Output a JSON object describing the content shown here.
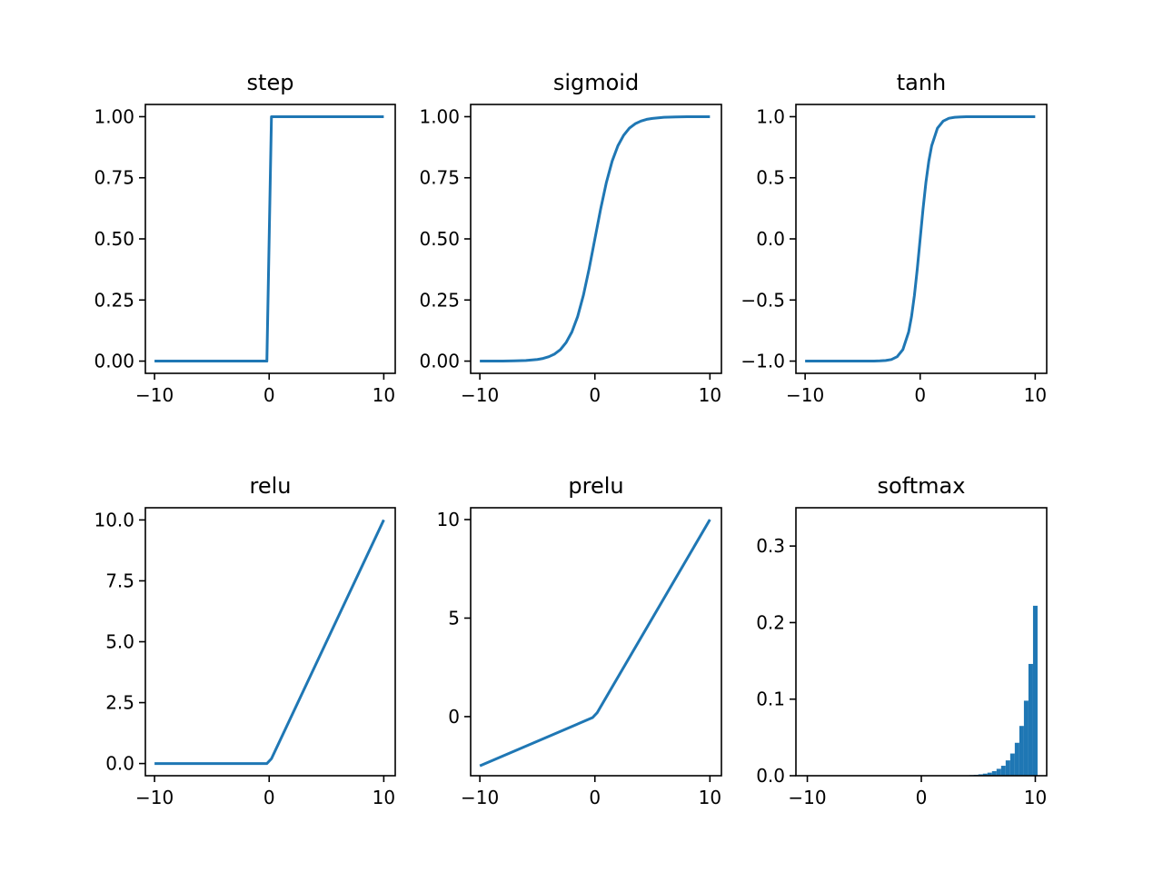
{
  "figure": {
    "line_color": "#1f77b4",
    "background": "#ffffff"
  },
  "chart_data": [
    {
      "type": "line",
      "title": "step",
      "xlabel": "",
      "ylabel": "",
      "xlim": [
        -10.8,
        11.0
      ],
      "ylim": [
        -0.05,
        1.05
      ],
      "xticks": [
        -10,
        0,
        10
      ],
      "xtick_labels": [
        "−10",
        "0",
        "10"
      ],
      "yticks": [
        0,
        0.25,
        0.5,
        0.75,
        1.0
      ],
      "ytick_labels": [
        "0.00",
        "0.25",
        "0.50",
        "0.75",
        "1.00"
      ],
      "series": [
        {
          "x": [
            -10,
            -0.2,
            0.2,
            10
          ],
          "y": [
            0,
            0,
            1,
            1
          ]
        }
      ]
    },
    {
      "type": "line",
      "title": "sigmoid",
      "xlabel": "",
      "ylabel": "",
      "xlim": [
        -10.8,
        11.0
      ],
      "ylim": [
        -0.05,
        1.05
      ],
      "xticks": [
        -10,
        0,
        10
      ],
      "xtick_labels": [
        "−10",
        "0",
        "10"
      ],
      "yticks": [
        0,
        0.25,
        0.5,
        0.75,
        1.0
      ],
      "ytick_labels": [
        "0.00",
        "0.25",
        "0.50",
        "0.75",
        "1.00"
      ],
      "series": [
        {
          "x": [
            -10,
            -9,
            -8,
            -7,
            -6,
            -5,
            -4.5,
            -4,
            -3.5,
            -3,
            -2.5,
            -2,
            -1.5,
            -1,
            -0.5,
            0,
            0.5,
            1,
            1.5,
            2,
            2.5,
            3,
            3.5,
            4,
            4.5,
            5,
            6,
            7,
            8,
            9,
            10
          ],
          "y": [
            5e-05,
            0.0001,
            0.0003,
            0.0009,
            0.0025,
            0.0067,
            0.011,
            0.018,
            0.029,
            0.047,
            0.076,
            0.119,
            0.182,
            0.269,
            0.378,
            0.5,
            0.622,
            0.731,
            0.818,
            0.881,
            0.924,
            0.953,
            0.971,
            0.982,
            0.989,
            0.993,
            0.9975,
            0.9991,
            0.9997,
            0.9999,
            0.99995
          ]
        }
      ]
    },
    {
      "type": "line",
      "title": "tanh",
      "xlabel": "",
      "ylabel": "",
      "xlim": [
        -10.8,
        11.0
      ],
      "ylim": [
        -1.1,
        1.1
      ],
      "xticks": [
        -10,
        0,
        10
      ],
      "xtick_labels": [
        "−10",
        "0",
        "10"
      ],
      "yticks": [
        -1.0,
        -0.5,
        0.0,
        0.5,
        1.0
      ],
      "ytick_labels": [
        "−1.0",
        "−0.5",
        "0.0",
        "0.5",
        "1.0"
      ],
      "series": [
        {
          "x": [
            -10,
            -5,
            -4,
            -3.5,
            -3,
            -2.5,
            -2,
            -1.5,
            -1,
            -0.75,
            -0.5,
            -0.25,
            0,
            0.25,
            0.5,
            0.75,
            1,
            1.5,
            2,
            2.5,
            3,
            3.5,
            4,
            5,
            10
          ],
          "y": [
            -1.0,
            -0.9999,
            -0.9993,
            -0.998,
            -0.995,
            -0.987,
            -0.964,
            -0.905,
            -0.762,
            -0.635,
            -0.462,
            -0.245,
            0,
            0.245,
            0.462,
            0.635,
            0.762,
            0.905,
            0.964,
            0.987,
            0.995,
            0.998,
            0.9993,
            0.9999,
            1.0
          ]
        }
      ]
    },
    {
      "type": "line",
      "title": "relu",
      "xlabel": "",
      "ylabel": "",
      "xlim": [
        -10.8,
        11.0
      ],
      "ylim": [
        -0.5,
        10.5
      ],
      "xticks": [
        -10,
        0,
        10
      ],
      "xtick_labels": [
        "−10",
        "0",
        "10"
      ],
      "yticks": [
        0,
        2.5,
        5.0,
        7.5,
        10.0
      ],
      "ytick_labels": [
        "0.0",
        "2.5",
        "5.0",
        "7.5",
        "10.0"
      ],
      "series": [
        {
          "x": [
            -10,
            -0.2,
            0.2,
            10
          ],
          "y": [
            0,
            0,
            0.2,
            10
          ]
        }
      ]
    },
    {
      "type": "line",
      "title": "prelu",
      "xlabel": "",
      "ylabel": "",
      "xlim": [
        -10.8,
        11.0
      ],
      "ylim": [
        -3.0,
        10.6
      ],
      "xticks": [
        -10,
        0,
        10
      ],
      "xtick_labels": [
        "−10",
        "0",
        "10"
      ],
      "yticks": [
        0,
        5,
        10
      ],
      "ytick_labels": [
        "0",
        "5",
        "10"
      ],
      "series": [
        {
          "x": [
            -10,
            -0.2,
            0.2,
            10
          ],
          "y": [
            -2.5,
            -0.05,
            0.2,
            10
          ]
        }
      ]
    },
    {
      "type": "bar",
      "title": "softmax",
      "xlabel": "",
      "ylabel": "",
      "xlim": [
        -11.0,
        11.0
      ],
      "ylim": [
        0,
        0.35
      ],
      "xticks": [
        -10,
        0,
        10
      ],
      "xtick_labels": [
        "−10",
        "0",
        "10"
      ],
      "yticks": [
        0.0,
        0.1,
        0.2,
        0.3
      ],
      "ytick_labels": [
        "0.0",
        "0.1",
        "0.2",
        "0.3"
      ],
      "bar_width": 0.4,
      "x": [
        4.4,
        4.8,
        5.2,
        5.6,
        6.0,
        6.4,
        6.8,
        7.2,
        7.6,
        8.0,
        8.4,
        8.8,
        9.2,
        9.6,
        10.0
      ],
      "values": [
        0.0008,
        0.0012,
        0.0018,
        0.0027,
        0.004,
        0.006,
        0.009,
        0.013,
        0.02,
        0.029,
        0.043,
        0.065,
        0.098,
        0.146,
        0.222
      ]
    }
  ]
}
